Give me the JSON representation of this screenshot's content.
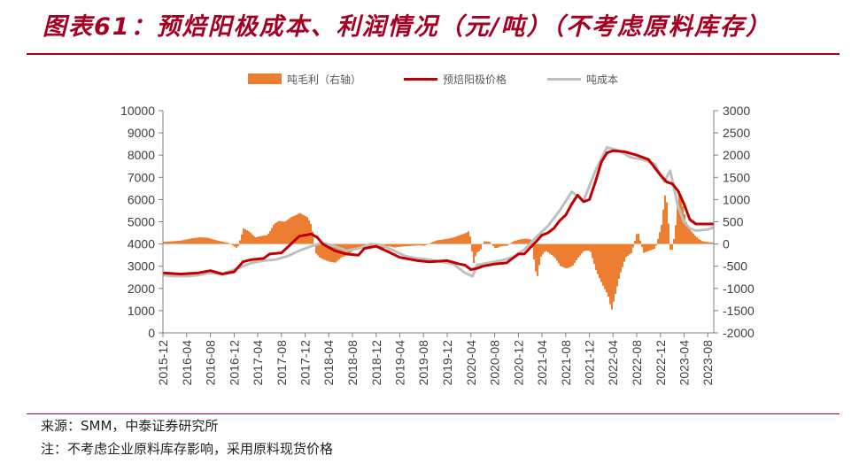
{
  "header": {
    "title": "图表61：预焙阳极成本、利润情况（元/吨）（不考虑原料库存）"
  },
  "colors": {
    "title": "#a50021",
    "profit": "#ed7d31",
    "price": "#c00000",
    "cost": "#bfbfbf",
    "axis": "#7f7f7f"
  },
  "legend": [
    {
      "label": "吨毛利（右轴）",
      "type": "bar",
      "color": "#ed7d31"
    },
    {
      "label": "预焙阳极价格",
      "type": "line",
      "color": "#c00000"
    },
    {
      "label": "吨成本",
      "type": "line",
      "color": "#bfbfbf"
    }
  ],
  "chart_data": {
    "type": "bar",
    "title": "",
    "xlabel": "",
    "ylabel": "",
    "x_start": "2015-12",
    "x_end": "2023-09",
    "x_ticks": [
      "2015-12",
      "2016-04",
      "2016-08",
      "2016-12",
      "2017-04",
      "2017-08",
      "2017-12",
      "2018-04",
      "2018-08",
      "2018-12",
      "2019-04",
      "2019-08",
      "2019-12",
      "2020-04",
      "2020-08",
      "2020-12",
      "2021-04",
      "2021-08",
      "2021-12",
      "2022-04",
      "2022-08",
      "2022-12",
      "2023-04",
      "2023-08"
    ],
    "y_left": {
      "min": 0,
      "max": 10000,
      "ticks": [
        0,
        1000,
        2000,
        3000,
        4000,
        5000,
        6000,
        7000,
        8000,
        9000,
        10000
      ]
    },
    "y_right": {
      "min": -2000,
      "max": 3000,
      "ticks": [
        -2000,
        -1500,
        -1000,
        -500,
        0,
        500,
        1000,
        1500,
        2000,
        2500,
        3000
      ]
    },
    "series": [
      {
        "name": "吨毛利（右轴）",
        "type": "bar",
        "axis": "right",
        "points": [
          [
            "2015-12-01",
            50
          ],
          [
            "2016-01-15",
            60
          ],
          [
            "2016-03-01",
            80
          ],
          [
            "2016-04-15",
            120
          ],
          [
            "2016-06-01",
            150
          ],
          [
            "2016-07-15",
            140
          ],
          [
            "2016-09-01",
            80
          ],
          [
            "2016-11-01",
            20
          ],
          [
            "2016-12-15",
            -100
          ],
          [
            "2017-01-15",
            350
          ],
          [
            "2017-02-15",
            280
          ],
          [
            "2017-03-15",
            150
          ],
          [
            "2017-04-15",
            180
          ],
          [
            "2017-05-15",
            200
          ],
          [
            "2017-06-01",
            300
          ],
          [
            "2017-06-20",
            450
          ],
          [
            "2017-07-15",
            520
          ],
          [
            "2017-08-15",
            500
          ],
          [
            "2017-09-15",
            600
          ],
          [
            "2017-10-10",
            650
          ],
          [
            "2017-11-01",
            700
          ],
          [
            "2017-11-20",
            650
          ],
          [
            "2017-12-10",
            600
          ],
          [
            "2018-01-01",
            400
          ],
          [
            "2018-01-20",
            -200
          ],
          [
            "2018-02-10",
            -300
          ],
          [
            "2018-03-01",
            -350
          ],
          [
            "2018-04-01",
            -400
          ],
          [
            "2018-05-01",
            -420
          ],
          [
            "2018-06-01",
            -300
          ],
          [
            "2018-07-01",
            -250
          ],
          [
            "2018-08-01",
            -150
          ],
          [
            "2018-09-01",
            -100
          ],
          [
            "2018-10-01",
            -50
          ],
          [
            "2018-11-01",
            -60
          ],
          [
            "2018-12-01",
            -80
          ],
          [
            "2019-01-01",
            -100
          ],
          [
            "2019-02-01",
            -50
          ],
          [
            "2019-03-01",
            -80
          ],
          [
            "2019-04-01",
            -60
          ],
          [
            "2019-05-01",
            -50
          ],
          [
            "2019-06-01",
            -40
          ],
          [
            "2019-07-01",
            -30
          ],
          [
            "2019-08-01",
            -40
          ],
          [
            "2019-09-01",
            20
          ],
          [
            "2019-10-01",
            80
          ],
          [
            "2019-11-01",
            100
          ],
          [
            "2019-12-01",
            120
          ],
          [
            "2020-01-01",
            150
          ],
          [
            "2020-02-01",
            200
          ],
          [
            "2020-03-01",
            250
          ],
          [
            "2020-03-20",
            300
          ],
          [
            "2020-04-10",
            -450
          ],
          [
            "2020-04-25",
            -200
          ],
          [
            "2020-05-15",
            -150
          ],
          [
            "2020-06-01",
            60
          ],
          [
            "2020-07-01",
            50
          ],
          [
            "2020-08-01",
            -100
          ],
          [
            "2020-09-01",
            -50
          ],
          [
            "2020-10-01",
            -40
          ],
          [
            "2020-11-01",
            60
          ],
          [
            "2020-12-01",
            100
          ],
          [
            "2021-01-01",
            120
          ],
          [
            "2021-02-01",
            100
          ],
          [
            "2021-03-01",
            -800
          ],
          [
            "2021-03-20",
            -300
          ],
          [
            "2021-04-15",
            -150
          ],
          [
            "2021-05-01",
            -200
          ],
          [
            "2021-06-01",
            -300
          ],
          [
            "2021-07-01",
            -500
          ],
          [
            "2021-08-01",
            -550
          ],
          [
            "2021-09-01",
            -500
          ],
          [
            "2021-10-01",
            -300
          ],
          [
            "2021-11-01",
            -150
          ],
          [
            "2021-12-01",
            -150
          ],
          [
            "2022-01-01",
            -600
          ],
          [
            "2022-02-01",
            -900
          ],
          [
            "2022-03-01",
            -1150
          ],
          [
            "2022-03-20",
            -1500
          ],
          [
            "2022-04-10",
            -1100
          ],
          [
            "2022-05-01",
            -700
          ],
          [
            "2022-06-01",
            -300
          ],
          [
            "2022-07-01",
            -200
          ],
          [
            "2022-08-01",
            300
          ],
          [
            "2022-09-01",
            -200
          ],
          [
            "2022-10-01",
            -150
          ],
          [
            "2022-11-01",
            -100
          ],
          [
            "2022-12-01",
            400
          ],
          [
            "2022-12-20",
            1100
          ],
          [
            "2023-01-01",
            900
          ],
          [
            "2023-01-20",
            -300
          ],
          [
            "2023-02-10",
            250
          ],
          [
            "2023-03-01",
            1200
          ],
          [
            "2023-03-20",
            850
          ],
          [
            "2023-04-10",
            450
          ],
          [
            "2023-05-01",
            300
          ],
          [
            "2023-05-20",
            200
          ],
          [
            "2023-06-10",
            120
          ],
          [
            "2023-07-01",
            60
          ],
          [
            "2023-08-01",
            40
          ],
          [
            "2023-09-01",
            30
          ]
        ]
      },
      {
        "name": "预焙阳极价格",
        "type": "line",
        "axis": "left",
        "points": [
          [
            "2015-12-01",
            2700
          ],
          [
            "2016-03-01",
            2650
          ],
          [
            "2016-06-01",
            2700
          ],
          [
            "2016-08-01",
            2800
          ],
          [
            "2016-10-01",
            2650
          ],
          [
            "2016-12-01",
            2750
          ],
          [
            "2017-01-15",
            3200
          ],
          [
            "2017-03-01",
            3300
          ],
          [
            "2017-05-01",
            3350
          ],
          [
            "2017-06-01",
            3550
          ],
          [
            "2017-08-01",
            3600
          ],
          [
            "2017-09-01",
            3850
          ],
          [
            "2017-10-01",
            4100
          ],
          [
            "2017-11-01",
            4350
          ],
          [
            "2017-12-01",
            4400
          ],
          [
            "2018-01-01",
            4450
          ],
          [
            "2018-02-01",
            4300
          ],
          [
            "2018-03-01",
            4000
          ],
          [
            "2018-05-01",
            3700
          ],
          [
            "2018-07-01",
            3550
          ],
          [
            "2018-09-01",
            3500
          ],
          [
            "2018-10-01",
            3800
          ],
          [
            "2018-12-01",
            3900
          ],
          [
            "2019-02-01",
            3650
          ],
          [
            "2019-04-01",
            3400
          ],
          [
            "2019-07-01",
            3250
          ],
          [
            "2019-09-01",
            3200
          ],
          [
            "2019-12-01",
            3250
          ],
          [
            "2020-02-01",
            3100
          ],
          [
            "2020-03-01",
            3050
          ],
          [
            "2020-04-01",
            2850
          ],
          [
            "2020-05-01",
            2900
          ],
          [
            "2020-06-01",
            3000
          ],
          [
            "2020-08-01",
            3100
          ],
          [
            "2020-10-01",
            3150
          ],
          [
            "2020-12-01",
            3550
          ],
          [
            "2021-01-01",
            3550
          ],
          [
            "2021-02-01",
            3850
          ],
          [
            "2021-03-01",
            4100
          ],
          [
            "2021-04-01",
            4400
          ],
          [
            "2021-05-01",
            4500
          ],
          [
            "2021-06-01",
            4700
          ],
          [
            "2021-07-01",
            5050
          ],
          [
            "2021-08-01",
            5300
          ],
          [
            "2021-09-01",
            5800
          ],
          [
            "2021-10-01",
            6200
          ],
          [
            "2021-11-01",
            5900
          ],
          [
            "2021-12-01",
            6000
          ],
          [
            "2022-01-01",
            6800
          ],
          [
            "2022-02-01",
            7700
          ],
          [
            "2022-03-01",
            8100
          ],
          [
            "2022-04-01",
            8200
          ],
          [
            "2022-06-01",
            8150
          ],
          [
            "2022-08-01",
            8000
          ],
          [
            "2022-10-01",
            7800
          ],
          [
            "2022-12-01",
            7100
          ],
          [
            "2023-01-01",
            6800
          ],
          [
            "2023-02-01",
            6700
          ],
          [
            "2023-03-01",
            6400
          ],
          [
            "2023-04-01",
            5800
          ],
          [
            "2023-05-01",
            5100
          ],
          [
            "2023-06-01",
            4900
          ],
          [
            "2023-08-01",
            4900
          ],
          [
            "2023-09-01",
            4900
          ]
        ]
      },
      {
        "name": "吨成本",
        "type": "line",
        "axis": "left",
        "points": [
          [
            "2015-12-01",
            2600
          ],
          [
            "2016-02-01",
            2550
          ],
          [
            "2016-04-01",
            2550
          ],
          [
            "2016-06-01",
            2600
          ],
          [
            "2016-08-01",
            2700
          ],
          [
            "2016-10-01",
            2650
          ],
          [
            "2016-12-01",
            2850
          ],
          [
            "2017-01-15",
            3000
          ],
          [
            "2017-03-01",
            3150
          ],
          [
            "2017-05-01",
            3250
          ],
          [
            "2017-07-01",
            3300
          ],
          [
            "2017-09-01",
            3450
          ],
          [
            "2017-11-01",
            3700
          ],
          [
            "2018-01-01",
            3900
          ],
          [
            "2018-03-01",
            4050
          ],
          [
            "2018-05-01",
            3900
          ],
          [
            "2018-07-01",
            3700
          ],
          [
            "2018-09-01",
            3800
          ],
          [
            "2018-11-01",
            4000
          ],
          [
            "2019-01-01",
            3950
          ],
          [
            "2019-03-01",
            3700
          ],
          [
            "2019-05-01",
            3450
          ],
          [
            "2019-07-01",
            3350
          ],
          [
            "2019-09-01",
            3300
          ],
          [
            "2019-11-01",
            3200
          ],
          [
            "2020-01-01",
            3100
          ],
          [
            "2020-03-01",
            2700
          ],
          [
            "2020-04-10",
            2550
          ],
          [
            "2020-05-01",
            3050
          ],
          [
            "2020-07-01",
            3150
          ],
          [
            "2020-09-01",
            3250
          ],
          [
            "2020-11-01",
            3400
          ],
          [
            "2021-01-01",
            3750
          ],
          [
            "2021-03-01",
            4300
          ],
          [
            "2021-05-01",
            4800
          ],
          [
            "2021-07-01",
            5500
          ],
          [
            "2021-09-01",
            6350
          ],
          [
            "2021-11-01",
            5950
          ],
          [
            "2022-01-01",
            7300
          ],
          [
            "2022-03-01",
            8350
          ],
          [
            "2022-05-01",
            8200
          ],
          [
            "2022-07-01",
            7900
          ],
          [
            "2022-09-01",
            7800
          ],
          [
            "2022-11-01",
            7600
          ],
          [
            "2022-12-20",
            6800
          ],
          [
            "2023-01-20",
            7300
          ],
          [
            "2023-03-01",
            5700
          ],
          [
            "2023-04-01",
            5000
          ],
          [
            "2023-05-01",
            4700
          ],
          [
            "2023-06-01",
            4600
          ],
          [
            "2023-08-01",
            4650
          ],
          [
            "2023-09-01",
            4750
          ]
        ]
      }
    ]
  },
  "footer": {
    "source": "来源：SMM，中泰证券研究所",
    "note": "注：不考虑企业原料库存影响，采用原料现货价格"
  }
}
